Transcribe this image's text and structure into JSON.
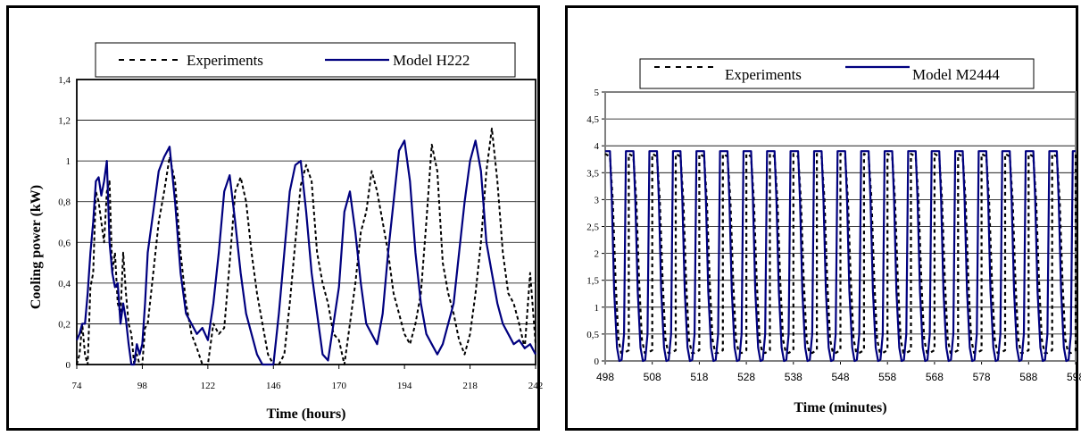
{
  "chart_data": [
    {
      "type": "line",
      "xlabel": "Time (hours)",
      "ylabel": "Cooling power  (kW)",
      "xlim": [
        74,
        242
      ],
      "ylim": [
        0,
        1.4
      ],
      "x_ticks": [
        "74",
        "98",
        "122",
        "146",
        "170",
        "194",
        "218",
        "242"
      ],
      "y_ticks": [
        "0",
        "0,2",
        "0,4",
        "0,6",
        "0,8",
        "1",
        "1,2",
        "1,4"
      ],
      "grid": true,
      "legend_position": "top",
      "series": [
        {
          "name": "Experiments",
          "style": "dashed",
          "color": "#000000",
          "x": [
            74,
            75,
            76,
            77,
            78,
            79,
            80,
            81,
            82,
            83,
            84,
            85,
            86,
            87,
            88,
            89,
            90,
            91,
            92,
            93,
            94,
            95,
            96,
            97,
            98,
            99,
            100,
            102,
            104,
            106,
            108,
            110,
            112,
            114,
            116,
            118,
            120,
            122,
            124,
            126,
            128,
            130,
            132,
            134,
            136,
            138,
            140,
            142,
            144,
            146,
            148,
            150,
            152,
            154,
            156,
            158,
            160,
            162,
            164,
            166,
            168,
            170,
            172,
            174,
            176,
            178,
            180,
            182,
            184,
            186,
            188,
            190,
            192,
            194,
            196,
            198,
            200,
            202,
            204,
            206,
            208,
            210,
            212,
            214,
            216,
            218,
            220,
            222,
            224,
            226,
            228,
            230,
            232,
            234,
            236,
            238,
            240,
            242
          ],
          "y": [
            0.0,
            0.05,
            0.2,
            0.05,
            0.0,
            0.38,
            0.45,
            0.85,
            0.8,
            0.7,
            0.6,
            0.85,
            0.9,
            0.45,
            0.55,
            0.3,
            0.25,
            0.55,
            0.35,
            0.2,
            0.15,
            0.0,
            0.05,
            0.0,
            0.0,
            0.18,
            0.2,
            0.45,
            0.7,
            0.85,
            1.02,
            0.9,
            0.55,
            0.3,
            0.15,
            0.08,
            0.0,
            0.0,
            0.2,
            0.15,
            0.18,
            0.5,
            0.85,
            0.92,
            0.8,
            0.55,
            0.35,
            0.2,
            0.05,
            0.0,
            0.0,
            0.05,
            0.3,
            0.6,
            0.88,
            0.98,
            0.9,
            0.55,
            0.4,
            0.3,
            0.15,
            0.12,
            0.0,
            0.2,
            0.4,
            0.65,
            0.75,
            0.95,
            0.85,
            0.7,
            0.55,
            0.35,
            0.25,
            0.15,
            0.1,
            0.2,
            0.35,
            0.7,
            1.08,
            0.95,
            0.5,
            0.35,
            0.25,
            0.12,
            0.05,
            0.15,
            0.35,
            0.6,
            0.95,
            1.16,
            0.9,
            0.55,
            0.35,
            0.3,
            0.2,
            0.08,
            0.45,
            0.1
          ]
        },
        {
          "name": "Model H222",
          "style": "solid",
          "color": "#00007f",
          "x": [
            74,
            75,
            76,
            77,
            78,
            79,
            80,
            81,
            82,
            83,
            84,
            85,
            86,
            87,
            88,
            89,
            90,
            91,
            92,
            93,
            94,
            95,
            96,
            97,
            98,
            99,
            100,
            102,
            104,
            106,
            108,
            110,
            112,
            114,
            116,
            118,
            120,
            122,
            124,
            126,
            128,
            130,
            132,
            134,
            136,
            138,
            140,
            142,
            144,
            146,
            148,
            150,
            152,
            154,
            156,
            158,
            160,
            162,
            164,
            166,
            168,
            170,
            172,
            174,
            176,
            178,
            180,
            182,
            184,
            186,
            188,
            190,
            192,
            194,
            196,
            198,
            200,
            202,
            204,
            206,
            208,
            210,
            212,
            214,
            216,
            218,
            220,
            222,
            224,
            226,
            228,
            230,
            232,
            234,
            236,
            238,
            240,
            242
          ],
          "y": [
            0.12,
            0.15,
            0.2,
            0.2,
            0.35,
            0.55,
            0.7,
            0.9,
            0.92,
            0.83,
            0.9,
            1.0,
            0.6,
            0.45,
            0.38,
            0.4,
            0.2,
            0.3,
            0.22,
            0.1,
            0.0,
            0.0,
            0.1,
            0.05,
            0.1,
            0.3,
            0.55,
            0.75,
            0.95,
            1.02,
            1.07,
            0.8,
            0.45,
            0.25,
            0.2,
            0.15,
            0.18,
            0.12,
            0.3,
            0.55,
            0.85,
            0.93,
            0.7,
            0.45,
            0.25,
            0.15,
            0.05,
            0.0,
            0.0,
            0.0,
            0.25,
            0.55,
            0.85,
            0.98,
            1.0,
            0.75,
            0.45,
            0.25,
            0.05,
            0.02,
            0.2,
            0.38,
            0.75,
            0.85,
            0.65,
            0.4,
            0.2,
            0.15,
            0.1,
            0.25,
            0.55,
            0.8,
            1.05,
            1.1,
            0.9,
            0.55,
            0.3,
            0.15,
            0.1,
            0.05,
            0.1,
            0.2,
            0.3,
            0.55,
            0.8,
            1.0,
            1.1,
            0.95,
            0.6,
            0.45,
            0.3,
            0.2,
            0.15,
            0.1,
            0.12,
            0.08,
            0.1,
            0.05
          ]
        }
      ]
    },
    {
      "type": "line",
      "xlabel": "Time (minutes)",
      "ylabel": "",
      "xlim": [
        498,
        598
      ],
      "ylim": [
        0,
        5
      ],
      "x_ticks": [
        "498",
        "508",
        "518",
        "528",
        "538",
        "548",
        "558",
        "568",
        "578",
        "588",
        "598"
      ],
      "y_ticks": [
        "0",
        "0,5",
        "1",
        "1,5",
        "2",
        "2,5",
        "3",
        "3,5",
        "4",
        "4,5",
        "5"
      ],
      "grid": true,
      "legend_position": "top",
      "series": [
        {
          "name": "Experiments",
          "style": "dashed",
          "color": "#000000",
          "cycle_period": 5.0,
          "x": [
            498,
            499,
            499.6,
            500.2,
            500.8,
            501.4,
            502.0,
            503.0
          ],
          "y": [
            3.85,
            3.8,
            3.0,
            1.5,
            0.4,
            0.15,
            0.15,
            0.2
          ]
        },
        {
          "name": "Model M2444",
          "style": "solid",
          "color": "#00007f",
          "cycle_period": 5.0,
          "x": [
            498,
            499,
            499.4,
            499.9,
            500.5,
            501.0,
            501.5,
            502.0,
            502.4
          ],
          "y": [
            3.9,
            3.9,
            3.0,
            1.3,
            0.25,
            0.0,
            0.02,
            0.5,
            3.9
          ]
        }
      ]
    }
  ]
}
